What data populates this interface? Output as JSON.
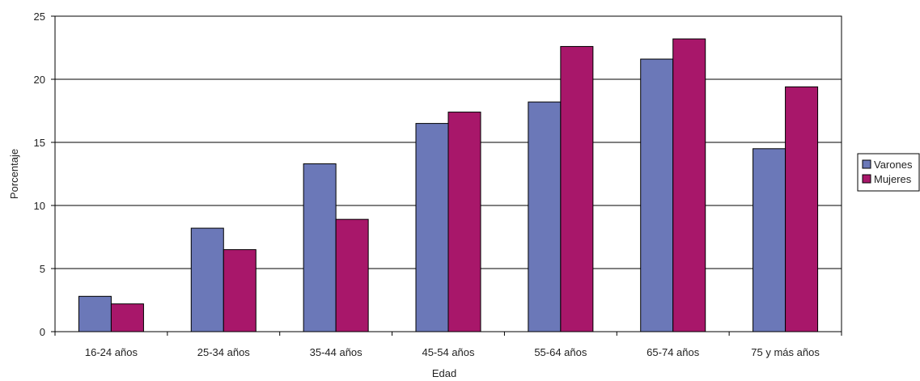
{
  "chart_data": {
    "type": "bar",
    "title": "",
    "xlabel": "Edad",
    "ylabel": "Porcentaje",
    "categories": [
      "16-24 años",
      "25-34 años",
      "35-44 años",
      "45-54 años",
      "55-64 años",
      "65-74 años",
      "75 y más años"
    ],
    "series": [
      {
        "name": "Varones",
        "color": "#6b78b8",
        "values": [
          2.8,
          8.2,
          13.3,
          16.5,
          18.2,
          21.6,
          14.5
        ]
      },
      {
        "name": "Mujeres",
        "color": "#a8176a",
        "values": [
          2.2,
          6.5,
          8.9,
          17.4,
          22.6,
          23.2,
          19.4
        ]
      }
    ],
    "ylim": [
      0,
      25
    ],
    "yticks": [
      0,
      5,
      10,
      15,
      20,
      25
    ],
    "grid": true,
    "legend_position": "right"
  }
}
